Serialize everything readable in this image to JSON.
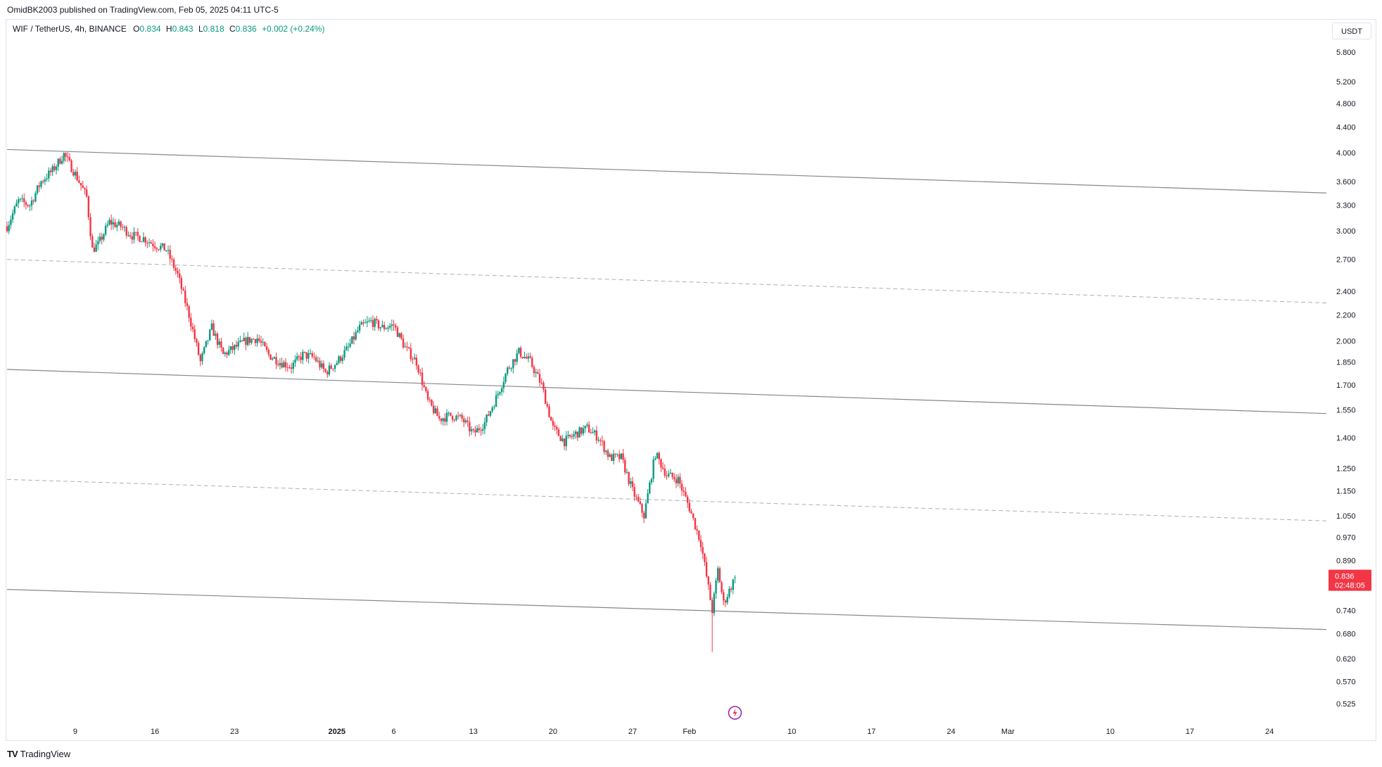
{
  "header": {
    "published_by": "OmidBK2003 published on TradingView.com, Feb 05, 2025 04:11 UTC-5"
  },
  "legend": {
    "symbol": "WIF / TetherUS, 4h, BINANCE",
    "open_label": "O",
    "open": "0.834",
    "high_label": "H",
    "high": "0.843",
    "low_label": "L",
    "low": "0.818",
    "close_label": "C",
    "close": "0.836",
    "change": "+0.002 (+0.24%)"
  },
  "price_axis": {
    "currency": "USDT",
    "current_price": "0.836",
    "countdown": "02:48:05"
  },
  "footer": {
    "brand": "TradingView",
    "brand_icon": "tradingview-logo-icon"
  },
  "colors": {
    "up": "#089981",
    "down": "#f23645",
    "channel": "#787b86",
    "axis_text": "#131722",
    "price_tag": "#f23645",
    "flash_icon": "#9c27b0"
  },
  "chart_data": {
    "type": "candlestick",
    "timeframe": "4h",
    "y_scale": "log",
    "ylim": [
      0.5,
      6.5
    ],
    "y_ticks": [
      "5.800",
      "5.200",
      "4.800",
      "4.400",
      "4.000",
      "3.600",
      "3.300",
      "3.000",
      "2.700",
      "2.400",
      "2.200",
      "2.000",
      "1.850",
      "1.700",
      "1.550",
      "1.400",
      "1.250",
      "1.150",
      "1.050",
      "0.970",
      "0.890",
      "0.740",
      "0.680",
      "0.620",
      "0.570",
      "0.525"
    ],
    "x_ticks": [
      {
        "label": "9",
        "bold": false,
        "date": "2024-12-09"
      },
      {
        "label": "16",
        "bold": false,
        "date": "2024-12-16"
      },
      {
        "label": "23",
        "bold": false,
        "date": "2024-12-23"
      },
      {
        "label": "2025",
        "bold": true,
        "date": "2025-01-01"
      },
      {
        "label": "6",
        "bold": false,
        "date": "2025-01-06"
      },
      {
        "label": "13",
        "bold": false,
        "date": "2025-01-13"
      },
      {
        "label": "20",
        "bold": false,
        "date": "2025-01-20"
      },
      {
        "label": "27",
        "bold": false,
        "date": "2025-01-27"
      },
      {
        "label": "Feb",
        "bold": false,
        "date": "2025-02-01"
      },
      {
        "label": "10",
        "bold": false,
        "date": "2025-02-10"
      },
      {
        "label": "17",
        "bold": false,
        "date": "2025-02-17"
      },
      {
        "label": "24",
        "bold": false,
        "date": "2025-02-24"
      },
      {
        "label": "Mar",
        "bold": false,
        "date": "2025-03-01"
      },
      {
        "label": "10",
        "bold": false,
        "date": "2025-03-10"
      },
      {
        "label": "17",
        "bold": false,
        "date": "2025-03-17"
      },
      {
        "label": "24",
        "bold": false,
        "date": "2025-03-24"
      }
    ],
    "x_range": [
      "2024-12-03",
      "2025-03-29"
    ],
    "path": [
      {
        "date": "2024-12-03",
        "price": 3.05
      },
      {
        "date": "2024-12-04",
        "price": 3.35
      },
      {
        "date": "2024-12-05",
        "price": 3.3
      },
      {
        "date": "2024-12-06",
        "price": 3.6
      },
      {
        "date": "2024-12-07",
        "price": 3.75
      },
      {
        "date": "2024-12-08",
        "price": 3.98
      },
      {
        "date": "2024-12-09",
        "price": 3.7
      },
      {
        "date": "2024-12-10",
        "price": 3.4
      },
      {
        "date": "2024-12-10T12:00",
        "price": 2.8
      },
      {
        "date": "2024-12-11",
        "price": 2.85
      },
      {
        "date": "2024-12-12",
        "price": 3.1
      },
      {
        "date": "2024-12-13",
        "price": 3.05
      },
      {
        "date": "2024-12-14",
        "price": 2.95
      },
      {
        "date": "2024-12-15",
        "price": 2.92
      },
      {
        "date": "2024-12-16",
        "price": 2.85
      },
      {
        "date": "2024-12-17",
        "price": 2.8
      },
      {
        "date": "2024-12-18",
        "price": 2.55
      },
      {
        "date": "2024-12-19",
        "price": 2.2
      },
      {
        "date": "2024-12-20",
        "price": 1.85
      },
      {
        "date": "2024-12-21",
        "price": 2.1
      },
      {
        "date": "2024-12-22",
        "price": 1.9
      },
      {
        "date": "2024-12-23",
        "price": 1.95
      },
      {
        "date": "2024-12-24",
        "price": 2.0
      },
      {
        "date": "2024-12-25",
        "price": 2.02
      },
      {
        "date": "2024-12-26",
        "price": 1.9
      },
      {
        "date": "2024-12-27",
        "price": 1.85
      },
      {
        "date": "2024-12-28",
        "price": 1.82
      },
      {
        "date": "2024-12-29",
        "price": 1.9
      },
      {
        "date": "2024-12-30",
        "price": 1.88
      },
      {
        "date": "2024-12-31",
        "price": 1.78
      },
      {
        "date": "2025-01-01",
        "price": 1.85
      },
      {
        "date": "2025-01-02",
        "price": 1.95
      },
      {
        "date": "2025-01-03",
        "price": 2.1
      },
      {
        "date": "2025-01-04",
        "price": 2.15
      },
      {
        "date": "2025-01-05",
        "price": 2.1
      },
      {
        "date": "2025-01-06",
        "price": 2.12
      },
      {
        "date": "2025-01-07",
        "price": 1.95
      },
      {
        "date": "2025-01-08",
        "price": 1.85
      },
      {
        "date": "2025-01-09",
        "price": 1.6
      },
      {
        "date": "2025-01-10",
        "price": 1.5
      },
      {
        "date": "2025-01-11",
        "price": 1.52
      },
      {
        "date": "2025-01-12",
        "price": 1.5
      },
      {
        "date": "2025-01-13",
        "price": 1.42
      },
      {
        "date": "2025-01-14",
        "price": 1.48
      },
      {
        "date": "2025-01-15",
        "price": 1.62
      },
      {
        "date": "2025-01-16",
        "price": 1.8
      },
      {
        "date": "2025-01-17",
        "price": 1.92
      },
      {
        "date": "2025-01-18",
        "price": 1.85
      },
      {
        "date": "2025-01-19",
        "price": 1.7
      },
      {
        "date": "2025-01-20",
        "price": 1.45
      },
      {
        "date": "2025-01-21",
        "price": 1.38
      },
      {
        "date": "2025-01-22",
        "price": 1.42
      },
      {
        "date": "2025-01-23",
        "price": 1.45
      },
      {
        "date": "2025-01-24",
        "price": 1.4
      },
      {
        "date": "2025-01-25",
        "price": 1.3
      },
      {
        "date": "2025-01-26",
        "price": 1.3
      },
      {
        "date": "2025-01-27",
        "price": 1.15
      },
      {
        "date": "2025-01-28",
        "price": 1.05
      },
      {
        "date": "2025-01-29",
        "price": 1.32
      },
      {
        "date": "2025-01-30",
        "price": 1.22
      },
      {
        "date": "2025-01-31",
        "price": 1.2
      },
      {
        "date": "2025-02-01",
        "price": 1.08
      },
      {
        "date": "2025-02-02",
        "price": 0.95
      },
      {
        "date": "2025-02-03",
        "price": 0.74
      },
      {
        "date": "2025-02-03T12:00",
        "price": 0.86
      },
      {
        "date": "2025-02-04",
        "price": 0.76
      },
      {
        "date": "2025-02-05",
        "price": 0.836
      }
    ],
    "channel_lines": [
      {
        "style": "solid",
        "start": {
          "date": "2024-12-03",
          "price": 4.05
        },
        "end": {
          "date": "2025-03-29",
          "price": 3.45
        }
      },
      {
        "style": "dashed",
        "start": {
          "date": "2024-12-03",
          "price": 2.7
        },
        "end": {
          "date": "2025-03-29",
          "price": 2.3
        }
      },
      {
        "style": "solid",
        "start": {
          "date": "2024-12-03",
          "price": 1.8
        },
        "end": {
          "date": "2025-03-29",
          "price": 1.53
        }
      },
      {
        "style": "dashed",
        "start": {
          "date": "2024-12-03",
          "price": 1.2
        },
        "end": {
          "date": "2025-03-29",
          "price": 1.03
        }
      },
      {
        "style": "solid",
        "start": {
          "date": "2024-12-03",
          "price": 0.8
        },
        "end": {
          "date": "2025-03-29",
          "price": 0.69
        }
      }
    ]
  }
}
